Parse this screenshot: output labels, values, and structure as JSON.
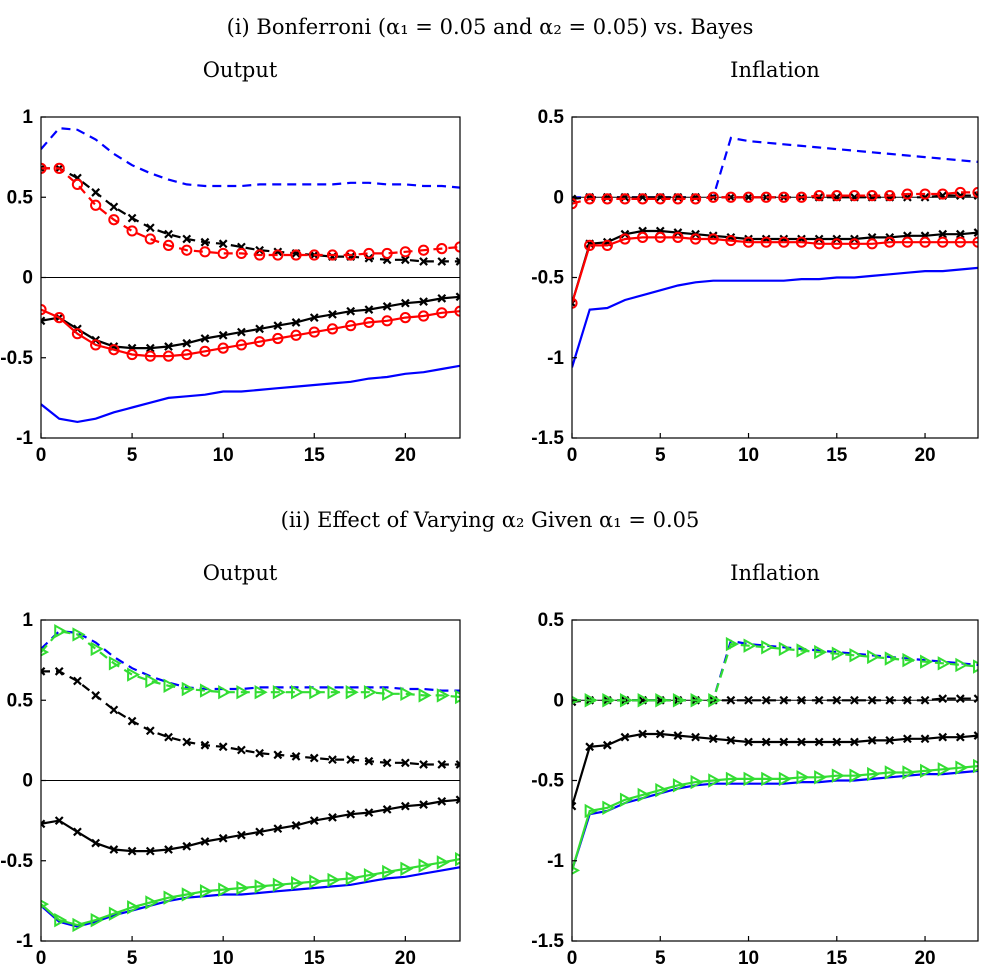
{
  "figure": {
    "section_titles": [
      "(i) Bonferroni (α₁ = 0.05 and α₂ = 0.05) vs. Bayes",
      "(ii) Effect of Varying α₂ Given α₁ = 0.05"
    ]
  },
  "colors": {
    "blue": "#0000ff",
    "black": "#000000",
    "red": "#ff0000",
    "green": "#33dd33"
  },
  "chart_data": [
    {
      "type": "line",
      "title": "Output",
      "xlim": [
        0,
        23
      ],
      "ylim": [
        -1,
        1
      ],
      "xticks": [
        0,
        5,
        10,
        15,
        20
      ],
      "yticks": [
        1,
        0.5,
        0,
        -0.5,
        -1
      ],
      "ytick_labels": [
        "1",
        "0.5",
        "0",
        "-0.5",
        "-1"
      ],
      "zero_line": true,
      "x": [
        0,
        1,
        2,
        3,
        4,
        5,
        6,
        7,
        8,
        9,
        10,
        11,
        12,
        13,
        14,
        15,
        16,
        17,
        18,
        19,
        20,
        21,
        22,
        23
      ],
      "series": [
        {
          "color": "blue",
          "dash": true,
          "marker": "none",
          "values": [
            0.8,
            0.93,
            0.92,
            0.86,
            0.77,
            0.7,
            0.65,
            0.61,
            0.58,
            0.57,
            0.57,
            0.57,
            0.58,
            0.58,
            0.58,
            0.58,
            0.58,
            0.59,
            0.59,
            0.58,
            0.58,
            0.57,
            0.57,
            0.56
          ]
        },
        {
          "color": "blue",
          "dash": false,
          "marker": "none",
          "values": [
            -0.79,
            -0.88,
            -0.9,
            -0.88,
            -0.84,
            -0.81,
            -0.78,
            -0.75,
            -0.74,
            -0.73,
            -0.71,
            -0.71,
            -0.7,
            -0.69,
            -0.68,
            -0.67,
            -0.66,
            -0.65,
            -0.63,
            -0.62,
            -0.6,
            -0.59,
            -0.57,
            -0.55
          ]
        },
        {
          "color": "black",
          "dash": true,
          "marker": "x",
          "values": [
            0.68,
            0.68,
            0.62,
            0.53,
            0.44,
            0.37,
            0.31,
            0.27,
            0.24,
            0.22,
            0.21,
            0.19,
            0.17,
            0.16,
            0.15,
            0.14,
            0.13,
            0.13,
            0.12,
            0.11,
            0.11,
            0.1,
            0.1,
            0.1
          ]
        },
        {
          "color": "black",
          "dash": false,
          "marker": "x",
          "values": [
            -0.27,
            -0.25,
            -0.32,
            -0.39,
            -0.43,
            -0.44,
            -0.44,
            -0.43,
            -0.41,
            -0.38,
            -0.36,
            -0.34,
            -0.32,
            -0.3,
            -0.28,
            -0.25,
            -0.23,
            -0.21,
            -0.2,
            -0.18,
            -0.16,
            -0.15,
            -0.13,
            -0.12
          ]
        },
        {
          "color": "red",
          "dash": true,
          "marker": "o",
          "values": [
            0.68,
            0.68,
            0.58,
            0.45,
            0.36,
            0.29,
            0.24,
            0.2,
            0.17,
            0.16,
            0.15,
            0.15,
            0.14,
            0.14,
            0.14,
            0.14,
            0.14,
            0.14,
            0.15,
            0.15,
            0.16,
            0.17,
            0.18,
            0.19
          ]
        },
        {
          "color": "red",
          "dash": false,
          "marker": "o",
          "values": [
            -0.2,
            -0.25,
            -0.35,
            -0.42,
            -0.45,
            -0.48,
            -0.49,
            -0.49,
            -0.48,
            -0.46,
            -0.44,
            -0.42,
            -0.4,
            -0.38,
            -0.36,
            -0.34,
            -0.32,
            -0.3,
            -0.28,
            -0.27,
            -0.25,
            -0.24,
            -0.22,
            -0.21
          ]
        }
      ]
    },
    {
      "type": "line",
      "title": "Inflation",
      "xlim": [
        0,
        23
      ],
      "ylim": [
        -1.5,
        0.5
      ],
      "xticks": [
        0,
        5,
        10,
        15,
        20
      ],
      "yticks": [
        0.5,
        0,
        -0.5,
        -1,
        -1.5
      ],
      "ytick_labels": [
        "0.5",
        "0",
        "-0.5",
        "-1",
        "-1.5"
      ],
      "zero_line": true,
      "x": [
        0,
        1,
        2,
        3,
        4,
        5,
        6,
        7,
        8,
        9,
        10,
        11,
        12,
        13,
        14,
        15,
        16,
        17,
        18,
        19,
        20,
        21,
        22,
        23
      ],
      "series": [
        {
          "color": "blue",
          "dash": true,
          "marker": "none",
          "values": [
            0.0,
            0.0,
            0.0,
            0.0,
            0.0,
            0.0,
            0.0,
            0.0,
            0.0,
            0.37,
            0.35,
            0.34,
            0.33,
            0.32,
            0.31,
            0.3,
            0.29,
            0.28,
            0.27,
            0.26,
            0.25,
            0.24,
            0.23,
            0.22
          ]
        },
        {
          "color": "blue",
          "dash": false,
          "marker": "none",
          "values": [
            -1.06,
            -0.7,
            -0.69,
            -0.64,
            -0.61,
            -0.58,
            -0.55,
            -0.53,
            -0.52,
            -0.52,
            -0.52,
            -0.52,
            -0.52,
            -0.51,
            -0.51,
            -0.5,
            -0.5,
            -0.49,
            -0.48,
            -0.47,
            -0.46,
            -0.46,
            -0.45,
            -0.44
          ]
        },
        {
          "color": "black",
          "dash": true,
          "marker": "x",
          "values": [
            -0.01,
            0.0,
            0.0,
            0.0,
            0.0,
            0.0,
            0.0,
            0.0,
            0.0,
            0.0,
            0.0,
            0.0,
            0.0,
            0.0,
            0.0,
            0.0,
            0.0,
            0.0,
            0.0,
            0.0,
            0.0,
            0.01,
            0.01,
            0.01
          ]
        },
        {
          "color": "black",
          "dash": false,
          "marker": "x",
          "values": [
            -0.66,
            -0.29,
            -0.28,
            -0.23,
            -0.21,
            -0.21,
            -0.22,
            -0.23,
            -0.24,
            -0.25,
            -0.26,
            -0.26,
            -0.26,
            -0.26,
            -0.26,
            -0.26,
            -0.26,
            -0.25,
            -0.25,
            -0.24,
            -0.24,
            -0.23,
            -0.23,
            -0.22
          ]
        },
        {
          "color": "red",
          "dash": true,
          "marker": "o",
          "values": [
            -0.04,
            -0.01,
            -0.01,
            -0.01,
            -0.01,
            -0.01,
            -0.01,
            -0.01,
            0.0,
            0.0,
            0.0,
            0.0,
            0.0,
            0.0,
            0.01,
            0.01,
            0.01,
            0.01,
            0.01,
            0.02,
            0.02,
            0.02,
            0.03,
            0.03
          ]
        },
        {
          "color": "red",
          "dash": false,
          "marker": "o",
          "values": [
            -0.66,
            -0.3,
            -0.3,
            -0.26,
            -0.25,
            -0.25,
            -0.25,
            -0.26,
            -0.26,
            -0.27,
            -0.28,
            -0.28,
            -0.28,
            -0.28,
            -0.29,
            -0.29,
            -0.29,
            -0.29,
            -0.28,
            -0.28,
            -0.28,
            -0.28,
            -0.28,
            -0.28
          ]
        }
      ]
    },
    {
      "type": "line",
      "title": "Output",
      "xlim": [
        0,
        23
      ],
      "ylim": [
        -1,
        1
      ],
      "xticks": [
        0,
        5,
        10,
        15,
        20
      ],
      "yticks": [
        1,
        0.5,
        0,
        -0.5,
        -1
      ],
      "ytick_labels": [
        "1",
        "0.5",
        "0",
        "-0.5",
        "-1"
      ],
      "zero_line": true,
      "x": [
        0,
        1,
        2,
        3,
        4,
        5,
        6,
        7,
        8,
        9,
        10,
        11,
        12,
        13,
        14,
        15,
        16,
        17,
        18,
        19,
        20,
        21,
        22,
        23
      ],
      "series": [
        {
          "color": "blue",
          "dash": true,
          "marker": "none",
          "values": [
            0.82,
            0.93,
            0.92,
            0.86,
            0.77,
            0.7,
            0.65,
            0.61,
            0.58,
            0.57,
            0.57,
            0.57,
            0.58,
            0.58,
            0.58,
            0.58,
            0.58,
            0.58,
            0.58,
            0.58,
            0.57,
            0.57,
            0.56,
            0.56
          ]
        },
        {
          "color": "blue",
          "dash": false,
          "marker": "none",
          "values": [
            -0.78,
            -0.88,
            -0.91,
            -0.88,
            -0.84,
            -0.81,
            -0.78,
            -0.75,
            -0.73,
            -0.72,
            -0.71,
            -0.71,
            -0.7,
            -0.69,
            -0.68,
            -0.67,
            -0.66,
            -0.65,
            -0.63,
            -0.61,
            -0.6,
            -0.58,
            -0.56,
            -0.54
          ]
        },
        {
          "color": "black",
          "dash": true,
          "marker": "x",
          "values": [
            0.68,
            0.68,
            0.62,
            0.53,
            0.44,
            0.37,
            0.31,
            0.27,
            0.24,
            0.22,
            0.21,
            0.19,
            0.17,
            0.16,
            0.15,
            0.14,
            0.13,
            0.13,
            0.12,
            0.11,
            0.11,
            0.1,
            0.1,
            0.1
          ]
        },
        {
          "color": "black",
          "dash": false,
          "marker": "x",
          "values": [
            -0.27,
            -0.25,
            -0.32,
            -0.39,
            -0.43,
            -0.44,
            -0.44,
            -0.43,
            -0.41,
            -0.38,
            -0.36,
            -0.34,
            -0.32,
            -0.3,
            -0.28,
            -0.25,
            -0.23,
            -0.21,
            -0.2,
            -0.18,
            -0.16,
            -0.15,
            -0.13,
            -0.12
          ]
        },
        {
          "color": "green",
          "dash": true,
          "marker": "triangle",
          "values": [
            0.8,
            0.93,
            0.91,
            0.82,
            0.73,
            0.66,
            0.62,
            0.59,
            0.57,
            0.56,
            0.55,
            0.55,
            0.55,
            0.55,
            0.55,
            0.55,
            0.55,
            0.55,
            0.55,
            0.54,
            0.54,
            0.53,
            0.53,
            0.52
          ]
        },
        {
          "color": "green",
          "dash": false,
          "marker": "triangle",
          "values": [
            -0.77,
            -0.87,
            -0.9,
            -0.87,
            -0.83,
            -0.79,
            -0.76,
            -0.73,
            -0.71,
            -0.69,
            -0.68,
            -0.67,
            -0.66,
            -0.65,
            -0.64,
            -0.63,
            -0.62,
            -0.61,
            -0.59,
            -0.57,
            -0.55,
            -0.53,
            -0.51,
            -0.49
          ]
        }
      ]
    },
    {
      "type": "line",
      "title": "Inflation",
      "xlim": [
        0,
        23
      ],
      "ylim": [
        -1.5,
        0.5
      ],
      "xticks": [
        0,
        5,
        10,
        15,
        20
      ],
      "yticks": [
        0.5,
        0,
        -0.5,
        -1,
        -1.5
      ],
      "ytick_labels": [
        "0.5",
        "0",
        "-0.5",
        "-1",
        "-1.5"
      ],
      "zero_line": true,
      "x": [
        0,
        1,
        2,
        3,
        4,
        5,
        6,
        7,
        8,
        9,
        10,
        11,
        12,
        13,
        14,
        15,
        16,
        17,
        18,
        19,
        20,
        21,
        22,
        23
      ],
      "series": [
        {
          "color": "blue",
          "dash": true,
          "marker": "none",
          "values": [
            0.0,
            0.0,
            0.0,
            0.0,
            0.0,
            0.0,
            0.0,
            0.0,
            0.0,
            0.37,
            0.35,
            0.34,
            0.33,
            0.32,
            0.31,
            0.3,
            0.29,
            0.28,
            0.27,
            0.26,
            0.25,
            0.24,
            0.23,
            0.22
          ]
        },
        {
          "color": "blue",
          "dash": false,
          "marker": "none",
          "values": [
            -1.06,
            -0.71,
            -0.69,
            -0.64,
            -0.61,
            -0.58,
            -0.55,
            -0.53,
            -0.52,
            -0.52,
            -0.52,
            -0.52,
            -0.52,
            -0.51,
            -0.51,
            -0.5,
            -0.5,
            -0.49,
            -0.48,
            -0.47,
            -0.46,
            -0.46,
            -0.45,
            -0.44
          ]
        },
        {
          "color": "black",
          "dash": true,
          "marker": "x",
          "values": [
            -0.01,
            0.0,
            0.0,
            0.0,
            0.0,
            0.0,
            0.0,
            0.0,
            0.0,
            0.0,
            0.0,
            0.0,
            0.0,
            0.0,
            0.0,
            0.0,
            0.0,
            0.0,
            0.0,
            0.0,
            0.0,
            0.01,
            0.01,
            0.01
          ]
        },
        {
          "color": "black",
          "dash": false,
          "marker": "x",
          "values": [
            -0.66,
            -0.29,
            -0.28,
            -0.23,
            -0.21,
            -0.21,
            -0.22,
            -0.23,
            -0.24,
            -0.25,
            -0.26,
            -0.26,
            -0.26,
            -0.26,
            -0.26,
            -0.26,
            -0.26,
            -0.25,
            -0.25,
            -0.24,
            -0.24,
            -0.23,
            -0.23,
            -0.22
          ]
        },
        {
          "color": "green",
          "dash": true,
          "marker": "triangle",
          "values": [
            0.0,
            0.0,
            0.0,
            0.0,
            0.0,
            0.0,
            0.0,
            0.0,
            0.0,
            0.35,
            0.34,
            0.33,
            0.32,
            0.31,
            0.3,
            0.29,
            0.28,
            0.27,
            0.26,
            0.25,
            0.24,
            0.23,
            0.22,
            0.21
          ]
        },
        {
          "color": "green",
          "dash": false,
          "marker": "triangle",
          "values": [
            -1.06,
            -0.69,
            -0.67,
            -0.62,
            -0.59,
            -0.56,
            -0.53,
            -0.51,
            -0.5,
            -0.49,
            -0.49,
            -0.49,
            -0.49,
            -0.48,
            -0.48,
            -0.47,
            -0.47,
            -0.46,
            -0.45,
            -0.45,
            -0.44,
            -0.43,
            -0.42,
            -0.41
          ]
        }
      ]
    }
  ]
}
